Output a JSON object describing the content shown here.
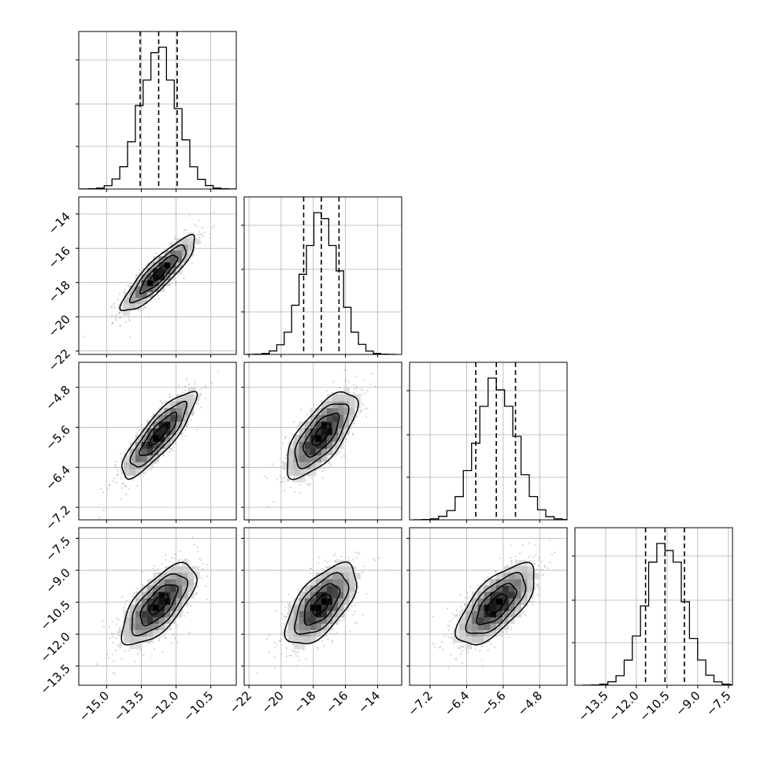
{
  "chart_data": {
    "type": "corner",
    "n_params": 4,
    "grid": true,
    "quantile_lines": "dashed",
    "params": [
      {
        "median": -12.75,
        "q16": -13.55,
        "q84": -11.95,
        "sigma": 0.8,
        "hist_peak": 0.9
      },
      {
        "median": -17.5,
        "q16": -18.6,
        "q84": -16.4,
        "sigma": 1.1,
        "hist_peak": 0.93
      },
      {
        "median": -5.75,
        "q16": -6.2,
        "q84": -5.33,
        "sigma": 0.43,
        "hist_peak": 0.93
      },
      {
        "median": -10.6,
        "q16": -11.55,
        "q84": -9.65,
        "sigma": 0.95,
        "hist_peak": 0.9
      }
    ],
    "correlations": [
      {
        "i": 1,
        "j": 0,
        "rho": 0.88
      },
      {
        "i": 2,
        "j": 0,
        "rho": 0.85
      },
      {
        "i": 2,
        "j": 1,
        "rho": 0.7
      },
      {
        "i": 3,
        "j": 0,
        "rho": 0.68
      },
      {
        "i": 3,
        "j": 1,
        "rho": 0.62
      },
      {
        "i": 3,
        "j": 2,
        "rho": 0.68
      }
    ],
    "x_axes": [
      {
        "range": [
          -16.2,
          -9.4
        ],
        "ticks": [
          -15.0,
          -13.5,
          -12.0,
          -10.5
        ],
        "tick_labels": [
          "−15.0",
          "−13.5",
          "−12.0",
          "−10.5"
        ]
      },
      {
        "range": [
          -22.3,
          -12.5
        ],
        "ticks": [
          -22,
          -20,
          -18,
          -16,
          -14
        ],
        "tick_labels": [
          "−22",
          "−20",
          "−18",
          "−16",
          "−14"
        ]
      },
      {
        "range": [
          -7.65,
          -4.2
        ],
        "ticks": [
          -7.2,
          -6.4,
          -5.6,
          -4.8
        ],
        "tick_labels": [
          "−7.2",
          "−6.4",
          "−5.6",
          "−4.8"
        ]
      },
      {
        "range": [
          -15.0,
          -7.3
        ],
        "ticks": [
          -13.5,
          -12.0,
          -10.5,
          -9.0,
          -7.5
        ],
        "tick_labels": [
          "−13.5",
          "−12.0",
          "−10.5",
          "−9.0",
          "−7.5"
        ]
      }
    ],
    "y_axes": [
      {
        "row": 1,
        "range": [
          -22.2,
          -13.0
        ],
        "ticks": [
          -22,
          -20,
          -18,
          -16,
          -14
        ],
        "tick_labels": [
          "−22",
          "−20",
          "−18",
          "−16",
          "−14"
        ]
      },
      {
        "row": 2,
        "range": [
          -7.45,
          -4.3
        ],
        "ticks": [
          -7.2,
          -6.4,
          -5.6,
          -4.8
        ],
        "tick_labels": [
          "−7.2",
          "−6.4",
          "−5.6",
          "−4.8"
        ]
      },
      {
        "row": 3,
        "range": [
          -14.4,
          -7.0
        ],
        "ticks": [
          -13.5,
          -12.0,
          -10.5,
          -9.0,
          -7.5
        ],
        "tick_labels": [
          "−13.5",
          "−12.0",
          "−10.5",
          "−9.0",
          "−7.5"
        ]
      }
    ]
  }
}
